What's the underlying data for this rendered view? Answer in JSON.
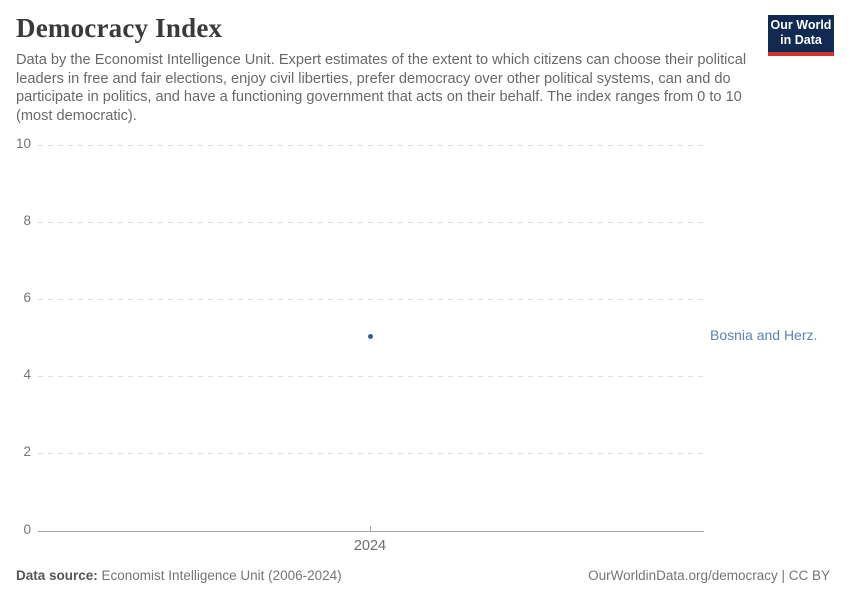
{
  "header": {
    "title": "Democracy Index",
    "subtitle": "Data by the Economist Intelligence Unit. Expert estimates of the extent to which citizens can choose their political leaders in free and fair elections, enjoy civil liberties, prefer democracy over other political systems, can and do participate in politics, and have a functioning government that acts on their behalf. The index ranges from 0 to 10 (most democratic)."
  },
  "logo": {
    "line1": "Our World",
    "line2": "in Data",
    "bg_color": "#102a52",
    "bar_color": "#d0342c"
  },
  "footer": {
    "source_label": "Data source:",
    "source_value": " Economist Intelligence Unit (2006-2024)",
    "credit": "OurWorldinData.org/democracy | CC BY"
  },
  "chart_data": {
    "type": "scatter",
    "title": "Democracy Index",
    "xlabel": "",
    "ylabel": "",
    "ylim": [
      0,
      10
    ],
    "y_ticks": [
      0,
      2,
      4,
      6,
      8,
      10
    ],
    "x_ticks": [
      2024
    ],
    "x_tick_labels": [
      "2024"
    ],
    "grid": "horizontal-dashed",
    "legend_position": "right-of-point",
    "series": [
      {
        "name": "Bosnia and Herz.",
        "color": "#3d5c94",
        "label_color": "#6080b5",
        "points": [
          {
            "x": 2024,
            "y": 5.04
          }
        ]
      }
    ]
  }
}
